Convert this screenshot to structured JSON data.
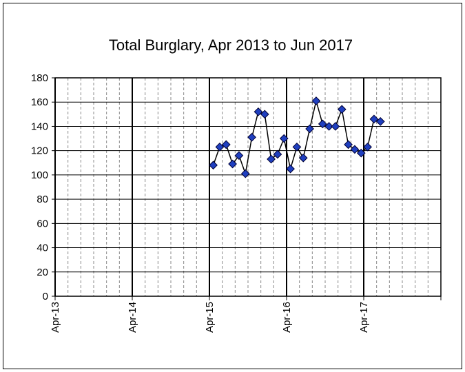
{
  "chart_data": {
    "type": "line",
    "title": "Total Burglary,  Apr 2013 to Jun 2017",
    "x": [
      "Apr-15",
      "May-15",
      "Jun-15",
      "Jul-15",
      "Aug-15",
      "Sep-15",
      "Oct-15",
      "Nov-15",
      "Dec-15",
      "Jan-16",
      "Feb-16",
      "Mar-16",
      "Apr-16",
      "May-16",
      "Jun-16",
      "Jul-16",
      "Aug-16",
      "Sep-16",
      "Oct-16",
      "Nov-16",
      "Dec-16",
      "Jan-17",
      "Feb-17",
      "Mar-17",
      "Apr-17",
      "May-17",
      "Jun-17"
    ],
    "series": [
      {
        "name": "Total Burglary",
        "color": "#1f3fbf",
        "values": [
          108,
          123,
          125,
          109,
          116,
          101,
          131,
          152,
          150,
          113,
          117,
          130,
          105,
          123,
          114,
          138,
          161,
          142,
          140,
          140,
          154,
          125,
          121,
          118,
          123,
          146,
          144
        ]
      }
    ],
    "xlim": [
      "Apr-13",
      "Apr-18"
    ],
    "xticks": [
      "Apr-13",
      "Apr-14",
      "Apr-15",
      "Apr-16",
      "Apr-17"
    ],
    "ylim": [
      0,
      180
    ],
    "yticks": [
      0,
      20,
      40,
      60,
      80,
      100,
      120,
      140,
      160,
      180
    ],
    "grid": true
  }
}
